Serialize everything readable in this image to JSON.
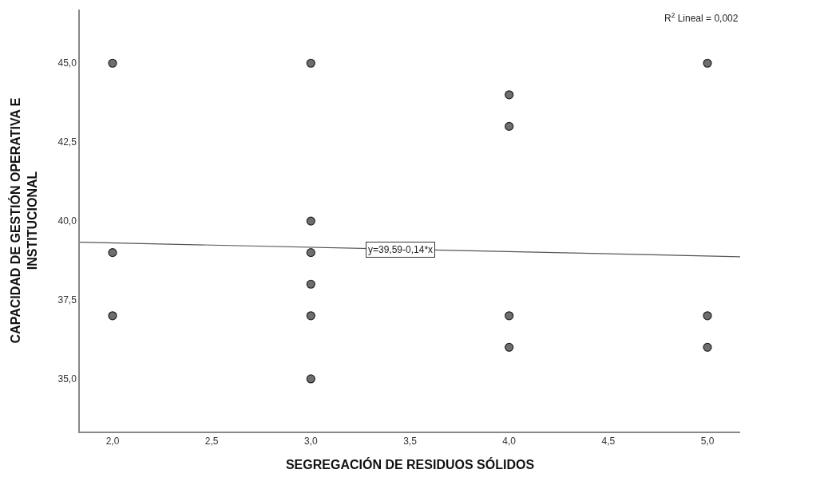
{
  "chart_data": {
    "type": "scatter",
    "xlabel": "SEGREGACIÓN DE RESIDUOS SÓLIDOS",
    "ylabel": "CAPACIDAD DE GESTIÓN OPERATIVA E\nINSTITUCIONAL",
    "x": [
      2,
      2,
      2,
      3,
      3,
      3,
      3,
      3,
      3,
      4,
      4,
      4,
      4,
      5,
      5,
      5
    ],
    "series": [
      {
        "color": "#6e6e6e",
        "marker": "circle",
        "values": [
          45,
          39,
          37,
          45,
          40,
          39,
          38,
          37,
          35,
          44,
          43,
          37,
          36,
          45,
          37,
          36
        ]
      },
      {
        "type": "line",
        "color": "#555555",
        "x": [
          1.835,
          5.165
        ],
        "values": [
          39.33,
          38.87
        ],
        "marker": "none",
        "line_style": "solid"
      }
    ],
    "xlim": [
      1.835,
      5.165
    ],
    "xticks": [
      {
        "value": 2,
        "label": "2,0"
      },
      {
        "value": 2.5,
        "label": "2,5"
      },
      {
        "value": 3,
        "label": "3,0"
      },
      {
        "value": 3.5,
        "label": "3,5"
      },
      {
        "value": 4,
        "label": "4,0"
      },
      {
        "value": 4.5,
        "label": "4,5"
      },
      {
        "value": 5,
        "label": "5,0"
      }
    ],
    "ylim": [
      33.33,
      46.7
    ],
    "yticks": [
      {
        "value": 35,
        "label": "35,0"
      },
      {
        "value": 37.5,
        "label": "37,5"
      },
      {
        "value": 40,
        "label": "40,0"
      },
      {
        "value": 42.5,
        "label": "42,5"
      },
      {
        "value": 45,
        "label": "45,0"
      }
    ],
    "annotations": [
      "R$^{2}$ Lineal = 0,002",
      {
        "text": "y=39,59-0,14*x",
        "x": 3.45,
        "y": 39.1
      }
    ],
    "grid": false,
    "legend": false
  }
}
